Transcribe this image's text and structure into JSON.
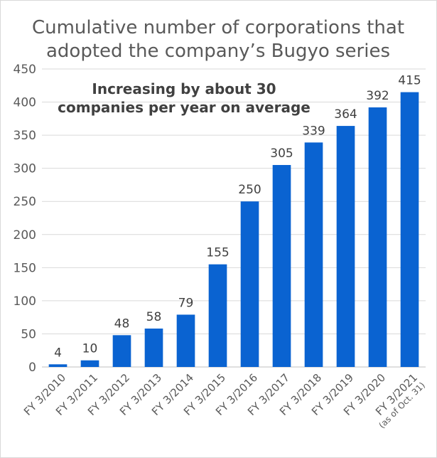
{
  "chart_data": {
    "type": "bar",
    "title_lines": [
      "Cumulative number of corporations that",
      "adopted the company’s Bugyo series"
    ],
    "annotation_lines": [
      "Increasing by about 30",
      "companies per year on average"
    ],
    "categories": [
      {
        "label": "FY 3/2010",
        "sub": ""
      },
      {
        "label": "FY 3/2011",
        "sub": ""
      },
      {
        "label": "FY 3/2012",
        "sub": ""
      },
      {
        "label": "FY 3/2013",
        "sub": ""
      },
      {
        "label": "FY 3/2014",
        "sub": ""
      },
      {
        "label": "FY 3/2015",
        "sub": ""
      },
      {
        "label": "FY 3/2016",
        "sub": ""
      },
      {
        "label": "FY 3/2017",
        "sub": ""
      },
      {
        "label": "FY 3/2018",
        "sub": ""
      },
      {
        "label": "FY 3/2019",
        "sub": ""
      },
      {
        "label": "FY 3/2020",
        "sub": ""
      },
      {
        "label": "FY 3/2021",
        "sub": "(as of Oct. 31)"
      }
    ],
    "values": [
      4,
      10,
      48,
      58,
      79,
      155,
      250,
      305,
      339,
      364,
      392,
      415
    ],
    "ylim": [
      0,
      450
    ],
    "yticks": [
      0,
      50,
      100,
      150,
      200,
      250,
      300,
      350,
      400,
      450
    ],
    "grid": true,
    "legend": "none",
    "bar_color": "#0a63d1"
  }
}
